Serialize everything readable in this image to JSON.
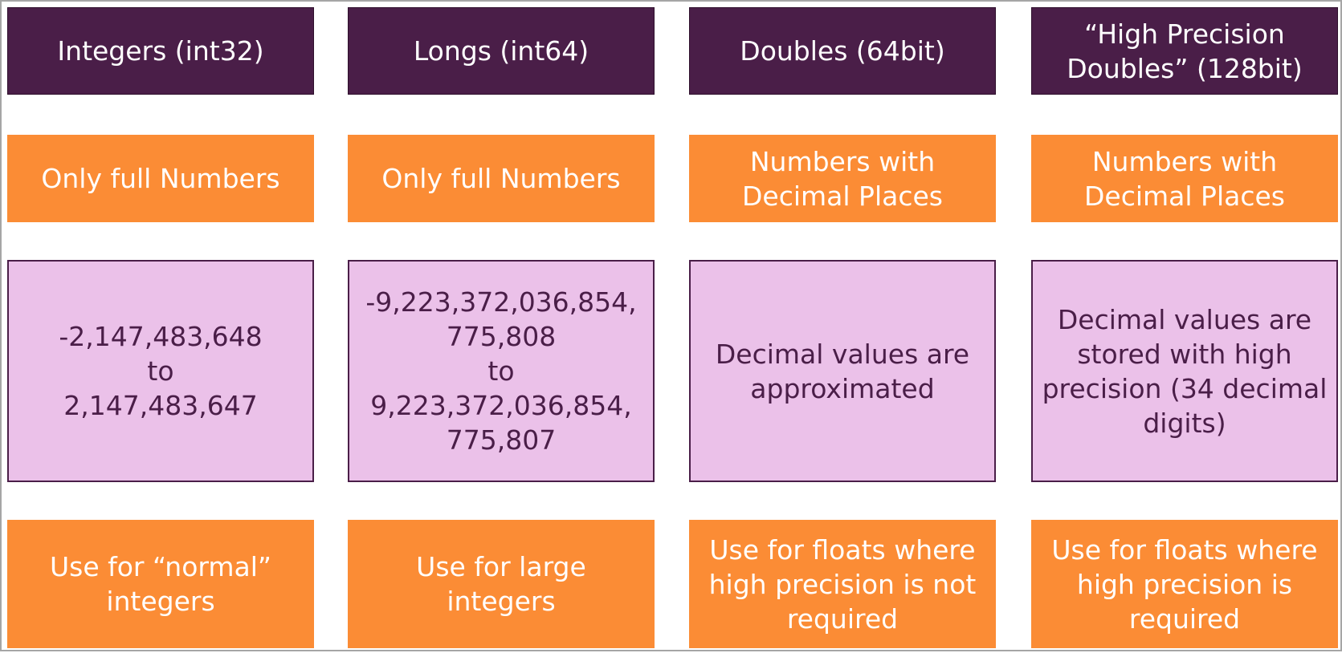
{
  "colors": {
    "header_bg": "#4a1e48",
    "orange": "#fb8c35",
    "pink": "#ebc1e9",
    "dark_text": "#4a1e48",
    "light_text": "#ffffff"
  },
  "columns": [
    {
      "header": "Integers (int32)",
      "kind": "Only full Numbers",
      "range": "-2,147,483,648\nto\n2,147,483,647",
      "use": "Use for “normal”\nintegers"
    },
    {
      "header": "Longs (int64)",
      "kind": "Only full Numbers",
      "range": "-9,223,372,036,854,\n775,808\nto\n9,223,372,036,854,\n775,807",
      "use": "Use for large\nintegers"
    },
    {
      "header": "Doubles (64bit)",
      "kind": "Numbers with\nDecimal Places",
      "range": "Decimal values are\napproximated",
      "use": "Use for floats where\nhigh precision is not\nrequired"
    },
    {
      "header": "“High Precision\nDoubles” (128bit)",
      "kind": "Numbers with\nDecimal Places",
      "range": "Decimal values are\nstored with high\nprecision (34 decimal\ndigits)",
      "use": "Use for floats where\nhigh precision is\nrequired"
    }
  ]
}
